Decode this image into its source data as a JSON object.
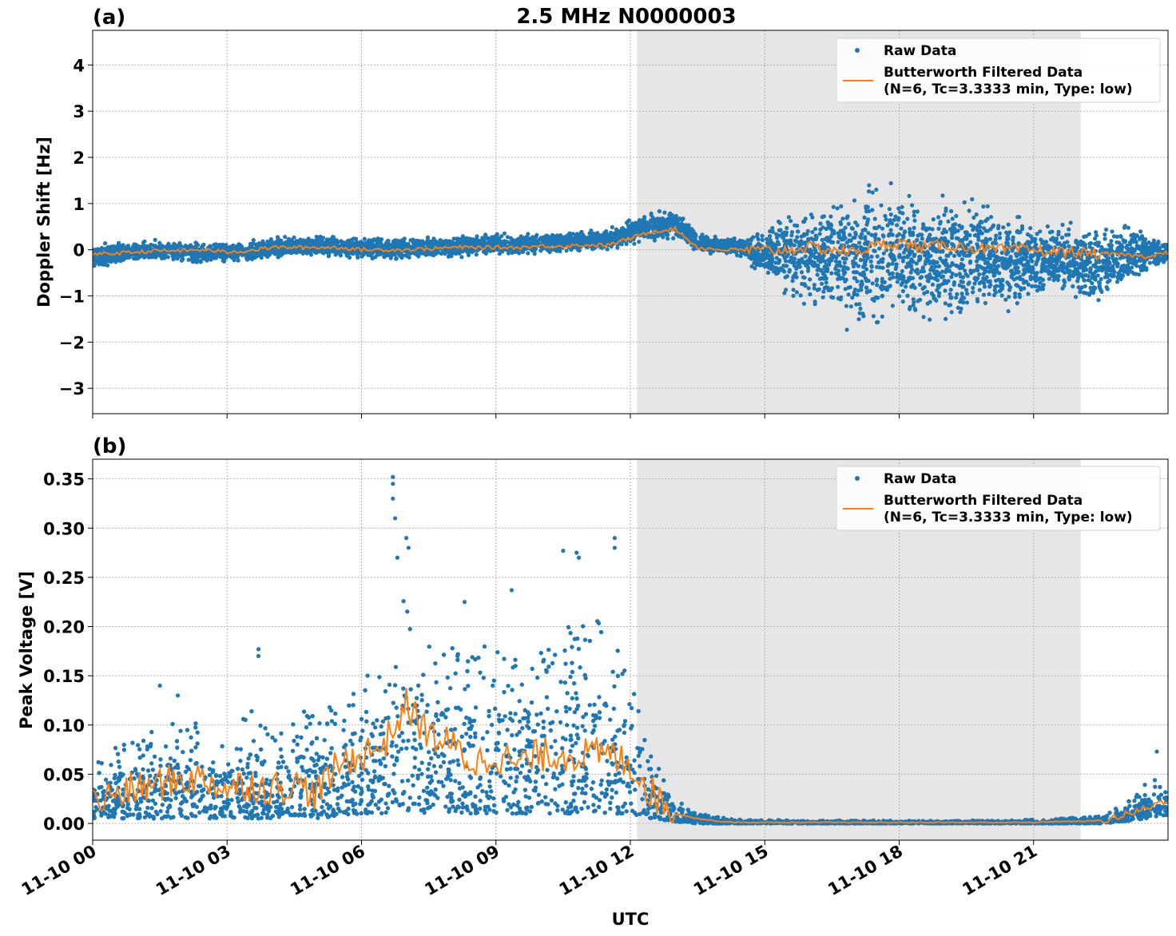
{
  "figure": {
    "title": "2.5 MHz N0000003",
    "xlabel": "UTC",
    "xticks": [
      "11-10 00",
      "11-10 03",
      "11-10 06",
      "11-10 09",
      "11-10 12",
      "11-10 15",
      "11-10 18",
      "11-10 21"
    ],
    "shaded_region_hours": [
      12.15,
      22.05
    ],
    "colors": {
      "raw": "#1f77b4",
      "filtered": "#ff7f0e",
      "shade": "#e6e6e6",
      "grid": "#b0b0b0"
    }
  },
  "legend": {
    "raw_label": "Raw Data",
    "filtered_line1": "Butterworth Filtered Data",
    "filtered_line2": "(N=6, Tc=3.3333 min, Type: low)"
  },
  "chart_data": [
    {
      "type": "scatter",
      "panel_label": "(a)",
      "ylabel": "Doppler Shift [Hz]",
      "xlim": [
        0,
        24
      ],
      "ylim": [
        -3.55,
        4.75
      ],
      "yticks": [
        4,
        3,
        2,
        1,
        0,
        -1,
        -2,
        -3
      ],
      "ytick_labels": [
        "4",
        "3",
        "2",
        "1",
        "0",
        "−1",
        "−2",
        "−3"
      ],
      "grid": true,
      "legend_position": "top-right",
      "series": [
        {
          "name": "Raw Data",
          "x": [
            0,
            0.5,
            1,
            1.5,
            2,
            2.5,
            3,
            3.5,
            4,
            4.5,
            5,
            5.5,
            6,
            6.5,
            7,
            7.5,
            8,
            8.5,
            9,
            9.5,
            10,
            10.5,
            11,
            11.5,
            12,
            12.5,
            13,
            13.5,
            14,
            14.5,
            15,
            15.5,
            16,
            16.5,
            17,
            17.5,
            18,
            18.5,
            19,
            19.5,
            20,
            20.5,
            21,
            21.5,
            22,
            22.5,
            23,
            23.5,
            24
          ],
          "y_low": [
            -0.45,
            -0.35,
            -0.3,
            -0.3,
            -0.3,
            -0.35,
            -0.3,
            -0.3,
            -0.25,
            -0.2,
            -0.2,
            -0.2,
            -0.25,
            -0.3,
            -0.25,
            -0.2,
            -0.2,
            -0.15,
            -0.15,
            -0.15,
            -0.1,
            -0.1,
            -0.05,
            -0.05,
            0.05,
            0.15,
            0.2,
            -0.1,
            -0.1,
            -0.2,
            -0.7,
            -1.2,
            -1.4,
            -1.7,
            -1.9,
            -2.0,
            -1.9,
            -1.8,
            -1.9,
            -1.7,
            -1.5,
            -1.5,
            -1.2,
            -1.0,
            -1.3,
            -1.4,
            -1.0,
            -0.6,
            -0.35
          ],
          "y_high": [
            0.15,
            0.2,
            0.2,
            0.25,
            0.2,
            0.2,
            0.2,
            0.2,
            0.3,
            0.35,
            0.35,
            0.35,
            0.3,
            0.3,
            0.3,
            0.35,
            0.3,
            0.35,
            0.4,
            0.35,
            0.4,
            0.4,
            0.45,
            0.45,
            0.7,
            0.85,
            0.95,
            0.4,
            0.3,
            0.3,
            0.5,
            1.0,
            1.3,
            1.4,
            1.5,
            1.7,
            1.6,
            1.5,
            1.6,
            1.4,
            1.2,
            1.0,
            0.8,
            0.7,
            0.7,
            0.8,
            0.7,
            0.45,
            0.2
          ]
        },
        {
          "name": "Butterworth Filtered Data",
          "x": [
            0,
            0.5,
            1,
            1.5,
            2,
            2.5,
            3,
            3.5,
            4,
            4.5,
            5,
            5.5,
            6,
            6.5,
            7,
            7.5,
            8,
            8.5,
            9,
            9.5,
            10,
            10.5,
            11,
            11.5,
            12,
            12.5,
            13,
            13.5,
            14,
            14.5,
            15,
            15.5,
            16,
            16.5,
            17,
            17.5,
            18,
            18.5,
            19,
            19.5,
            20,
            20.5,
            21,
            21.5,
            22,
            22.5,
            23,
            23.5,
            24
          ],
          "y": [
            -0.1,
            -0.08,
            -0.05,
            -0.02,
            -0.02,
            0.0,
            -0.05,
            -0.02,
            0.05,
            0.05,
            0.05,
            0.05,
            0.0,
            0.0,
            0.0,
            0.02,
            0.05,
            0.05,
            0.05,
            0.05,
            0.08,
            0.08,
            0.1,
            0.1,
            0.25,
            0.4,
            0.45,
            0.05,
            0.0,
            0.0,
            -0.02,
            0.0,
            0.05,
            0.0,
            -0.05,
            0.1,
            0.15,
            0.05,
            0.1,
            0.05,
            0.0,
            0.0,
            0.0,
            -0.05,
            -0.05,
            -0.1,
            -0.1,
            -0.15,
            -0.05
          ]
        }
      ]
    },
    {
      "type": "scatter",
      "panel_label": "(b)",
      "ylabel": "Peak Voltage [V]",
      "xlim": [
        0,
        24
      ],
      "ylim": [
        -0.017,
        0.37
      ],
      "yticks": [
        0.35,
        0.3,
        0.25,
        0.2,
        0.15,
        0.1,
        0.05,
        0.0
      ],
      "ytick_labels": [
        "0.35",
        "0.30",
        "0.25",
        "0.20",
        "0.15",
        "0.10",
        "0.05",
        "0.00"
      ],
      "grid": true,
      "legend_position": "top-right",
      "series": [
        {
          "name": "Raw Data",
          "x": [
            0,
            0.5,
            1,
            1.5,
            2,
            2.5,
            3,
            3.5,
            4,
            4.5,
            5,
            5.5,
            6,
            6.5,
            7,
            7.5,
            8,
            8.5,
            9,
            9.5,
            10,
            10.5,
            11,
            11.5,
            12,
            12.5,
            13,
            13.5,
            14,
            14.5,
            15,
            15.5,
            16,
            16.5,
            17,
            17.5,
            18,
            18.5,
            19,
            19.5,
            20,
            20.5,
            21,
            21.5,
            22,
            22.5,
            23,
            23.5,
            24
          ],
          "y_low": [
            0.005,
            0.005,
            0.005,
            0.005,
            0.005,
            0.005,
            0.005,
            0.005,
            0.005,
            0.008,
            0.005,
            0.008,
            0.01,
            0.01,
            0.012,
            0.01,
            0.012,
            0.01,
            0.01,
            0.01,
            0.01,
            0.01,
            0.01,
            0.01,
            0.01,
            0.005,
            0.002,
            0.0,
            0.0,
            0.0,
            0.0,
            0.0,
            0.0,
            0.0,
            0.0,
            0.0,
            0.0,
            0.0,
            0.0,
            0.0,
            0.0,
            0.0,
            0.0,
            0.0,
            0.0,
            0.0,
            0.002,
            0.005,
            0.008
          ],
          "y_high": [
            0.06,
            0.08,
            0.09,
            0.1,
            0.11,
            0.1,
            0.09,
            0.12,
            0.09,
            0.11,
            0.12,
            0.13,
            0.15,
            0.16,
            0.25,
            0.2,
            0.2,
            0.17,
            0.19,
            0.17,
            0.18,
            0.2,
            0.22,
            0.2,
            0.16,
            0.07,
            0.025,
            0.012,
            0.006,
            0.004,
            0.004,
            0.003,
            0.003,
            0.003,
            0.003,
            0.003,
            0.003,
            0.003,
            0.003,
            0.003,
            0.003,
            0.003,
            0.004,
            0.005,
            0.006,
            0.008,
            0.02,
            0.04,
            0.055
          ],
          "peaks": [
            {
              "x": 6.7,
              "y": 0.352
            },
            {
              "x": 6.7,
              "y": 0.345
            },
            {
              "x": 6.7,
              "y": 0.33
            },
            {
              "x": 6.75,
              "y": 0.31
            },
            {
              "x": 7.0,
              "y": 0.29
            },
            {
              "x": 7.05,
              "y": 0.28
            },
            {
              "x": 6.8,
              "y": 0.27
            },
            {
              "x": 11.65,
              "y": 0.29
            },
            {
              "x": 11.65,
              "y": 0.28
            },
            {
              "x": 10.5,
              "y": 0.277
            },
            {
              "x": 10.8,
              "y": 0.275
            },
            {
              "x": 10.85,
              "y": 0.27
            },
            {
              "x": 9.35,
              "y": 0.237
            },
            {
              "x": 8.3,
              "y": 0.225
            },
            {
              "x": 3.7,
              "y": 0.177
            },
            {
              "x": 3.7,
              "y": 0.17
            },
            {
              "x": 1.9,
              "y": 0.13
            },
            {
              "x": 1.5,
              "y": 0.14
            },
            {
              "x": 23.75,
              "y": 0.073
            }
          ]
        },
        {
          "name": "Butterworth Filtered Data",
          "x": [
            0,
            0.5,
            1,
            1.5,
            2,
            2.5,
            3,
            3.5,
            4,
            4.5,
            5,
            5.5,
            6,
            6.5,
            7,
            7.5,
            8,
            8.5,
            9,
            9.5,
            10,
            10.5,
            11,
            11.5,
            12,
            12.5,
            13,
            13.5,
            14,
            14.5,
            15,
            15.5,
            16,
            16.5,
            17,
            17.5,
            18,
            18.5,
            19,
            19.5,
            20,
            20.5,
            21,
            21.5,
            22,
            22.5,
            23,
            23.5,
            24
          ],
          "y": [
            0.02,
            0.03,
            0.035,
            0.04,
            0.045,
            0.045,
            0.035,
            0.04,
            0.035,
            0.04,
            0.03,
            0.06,
            0.07,
            0.08,
            0.12,
            0.09,
            0.08,
            0.06,
            0.07,
            0.06,
            0.07,
            0.07,
            0.07,
            0.07,
            0.06,
            0.03,
            0.01,
            0.005,
            0.002,
            0.001,
            0.001,
            0.001,
            0.001,
            0.001,
            0.001,
            0.001,
            0.001,
            0.001,
            0.001,
            0.001,
            0.001,
            0.001,
            0.001,
            0.002,
            0.002,
            0.003,
            0.008,
            0.015,
            0.025
          ]
        }
      ]
    }
  ]
}
